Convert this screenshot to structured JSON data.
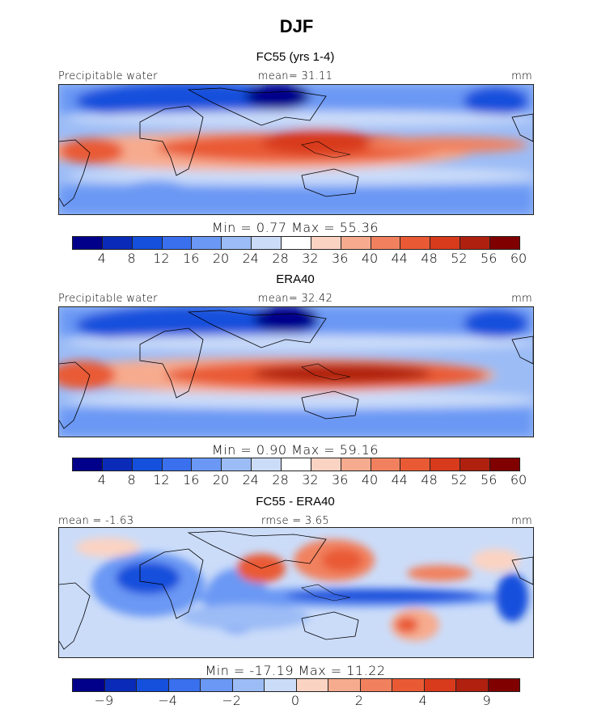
{
  "figure_title": "DJF",
  "panels": [
    {
      "title": "FC55 (yrs 1-4)",
      "left_label": "Precipitable water",
      "center_label": "mean=   31.11",
      "right_label": "mm",
      "min_max": "Min =    0.77  Max =   55.36",
      "colorbar_ticks": [
        "4",
        "8",
        "12",
        "16",
        "20",
        "24",
        "28",
        "32",
        "36",
        "40",
        "44",
        "48",
        "52",
        "56",
        "60"
      ],
      "colors": [
        "#00008b",
        "#0a2bb8",
        "#1450dc",
        "#3a70ee",
        "#6a98f4",
        "#9cbcf6",
        "#cbdcf9",
        "#ffffff",
        "#fbd3c3",
        "#f7ab8e",
        "#f1815e",
        "#e95a34",
        "#d83a1c",
        "#b0200f",
        "#800000"
      ]
    },
    {
      "title": "ERA40",
      "left_label": "Precipitable water",
      "center_label": "mean=   32.42",
      "right_label": "mm",
      "min_max": "Min =    0.90  Max =   59.16",
      "colorbar_ticks": [
        "4",
        "8",
        "12",
        "16",
        "20",
        "24",
        "28",
        "32",
        "36",
        "40",
        "44",
        "48",
        "52",
        "56",
        "60"
      ],
      "colors": [
        "#00008b",
        "#0a2bb8",
        "#1450dc",
        "#3a70ee",
        "#6a98f4",
        "#9cbcf6",
        "#cbdcf9",
        "#ffffff",
        "#fbd3c3",
        "#f7ab8e",
        "#f1815e",
        "#e95a34",
        "#d83a1c",
        "#b0200f",
        "#800000"
      ]
    },
    {
      "title": "FC55 - ERA40",
      "left_label": "mean =   -1.63",
      "center_label": "rmse =    3.65",
      "right_label": "mm",
      "min_max": "Min = -17.19  Max =   11.22",
      "colorbar_ticks": [
        "-9",
        "-4",
        "-2",
        "0",
        "2",
        "4",
        "9"
      ],
      "colors": [
        "#00008b",
        "#0a2bb8",
        "#1450dc",
        "#3a70ee",
        "#6a98f4",
        "#9cbcf6",
        "#cbdcf9",
        "#fbd3c3",
        "#f7ab8e",
        "#f1815e",
        "#e95a34",
        "#d83a1c",
        "#b0200f",
        "#800000"
      ]
    }
  ]
}
